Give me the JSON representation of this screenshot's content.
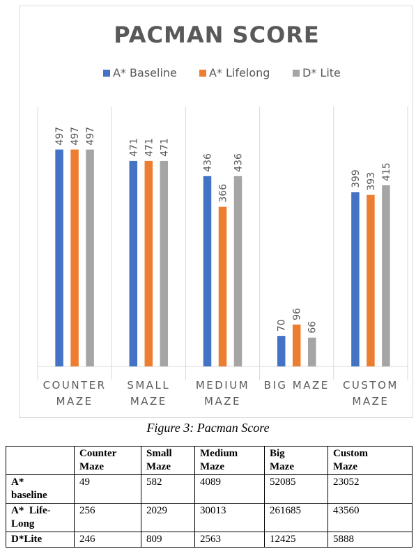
{
  "chart_data": {
    "type": "bar",
    "title": "PACMAN SCORE",
    "categories": [
      [
        "COUNTER",
        "MAZE"
      ],
      [
        "SMALL",
        "MAZE"
      ],
      [
        "MEDIUM",
        "MAZE"
      ],
      [
        "BIG MAZE"
      ],
      [
        "CUSTOM",
        "MAZE"
      ]
    ],
    "series": [
      {
        "name": "A* Baseline",
        "color": "#4472c4",
        "values": [
          497,
          471,
          436,
          70,
          399
        ]
      },
      {
        "name": "A* Lifelong",
        "color": "#ed7d31",
        "values": [
          497,
          471,
          366,
          96,
          393
        ]
      },
      {
        "name": "D* Lite",
        "color": "#a5a5a5",
        "values": [
          497,
          471,
          436,
          66,
          415
        ]
      }
    ],
    "ylim": [
      0,
      500
    ],
    "legend_position": "top",
    "data_labels": "rotated, above bars",
    "category_separators": true
  },
  "caption": "Figure 3: Pacman Score",
  "table": {
    "headers": [
      [
        "",
        ""
      ],
      [
        "Counter",
        "Maze"
      ],
      [
        "Small",
        "Maze"
      ],
      [
        "Medium",
        "Maze"
      ],
      [
        "Big",
        "Maze"
      ],
      [
        "Custom",
        "Maze"
      ]
    ],
    "rows": [
      {
        "label": [
          "A*",
          "baseline"
        ],
        "values": [
          "49",
          "582",
          "4089",
          "52085",
          "23052"
        ]
      },
      {
        "label": [
          "A*  Life-",
          "Long"
        ],
        "values": [
          "256",
          "2029",
          "30013",
          "261685",
          "43560"
        ]
      },
      {
        "label": [
          "D*Lite"
        ],
        "values": [
          "246",
          "809",
          "2563",
          "12425",
          "5888"
        ]
      }
    ]
  }
}
